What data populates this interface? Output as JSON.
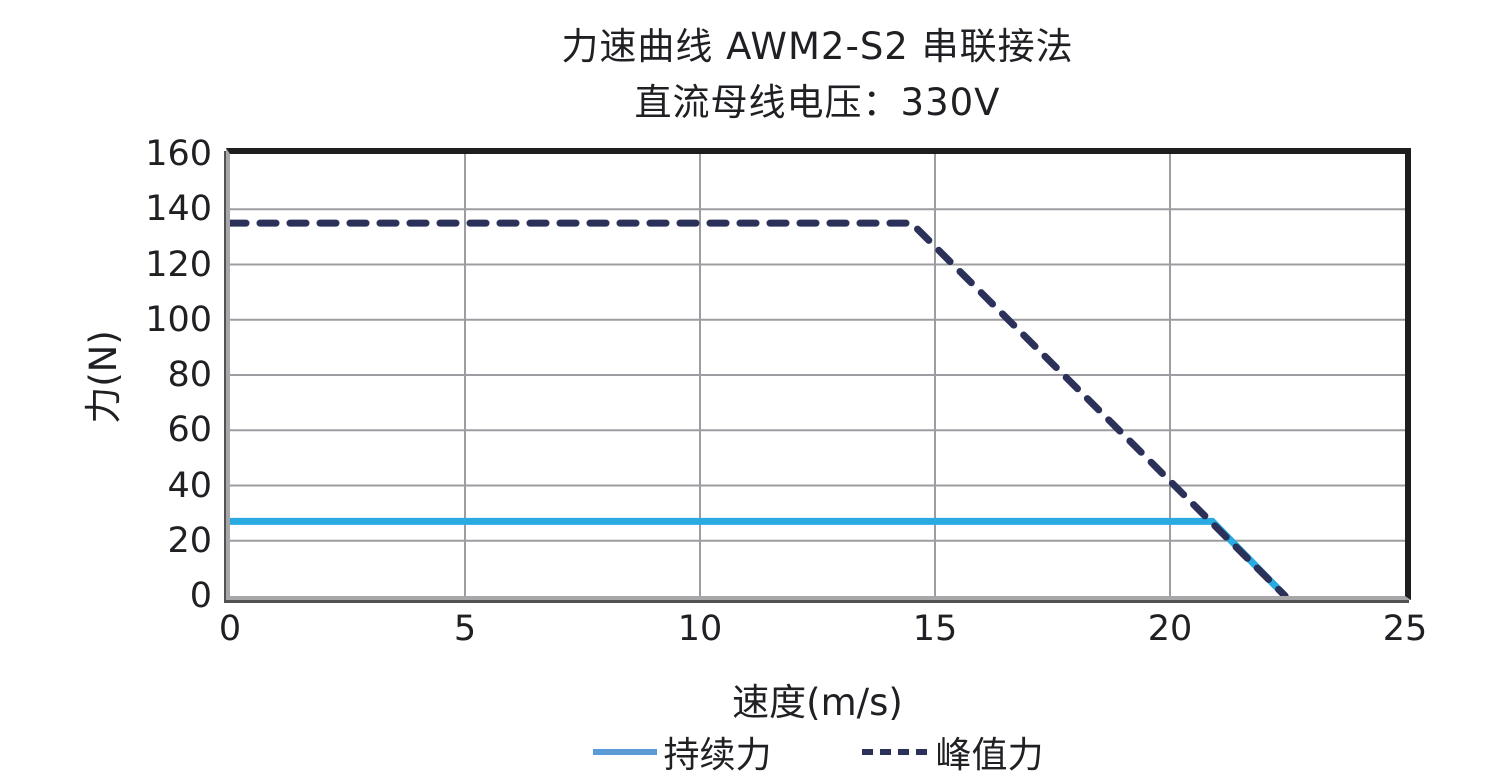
{
  "chart_data": {
    "type": "line",
    "title": "力速曲线 AWM2-S2 串联接法",
    "subtitle": "直流母线电压：330V",
    "xlabel": "速度(m/s)",
    "ylabel": "力(N)",
    "xlim": [
      0,
      25
    ],
    "ylim": [
      0,
      160
    ],
    "xticks": [
      0,
      5,
      10,
      15,
      20,
      25
    ],
    "yticks": [
      0,
      20,
      40,
      60,
      80,
      100,
      120,
      140,
      160
    ],
    "grid": true,
    "gridline_color": "#9d9da1",
    "legend_position": "bottom",
    "series": [
      {
        "name": "持续力",
        "style": "solid",
        "color": "#29abe2",
        "legend_swatch_color": "#5b9bd5",
        "points": [
          [
            0,
            27
          ],
          [
            20.9,
            27
          ],
          [
            22.45,
            0
          ]
        ]
      },
      {
        "name": "峰值力",
        "style": "dashed",
        "color": "#2b3158",
        "legend_swatch_color": "#2b3158",
        "points": [
          [
            0,
            135
          ],
          [
            14.5,
            135
          ],
          [
            22.45,
            0
          ]
        ]
      }
    ]
  }
}
